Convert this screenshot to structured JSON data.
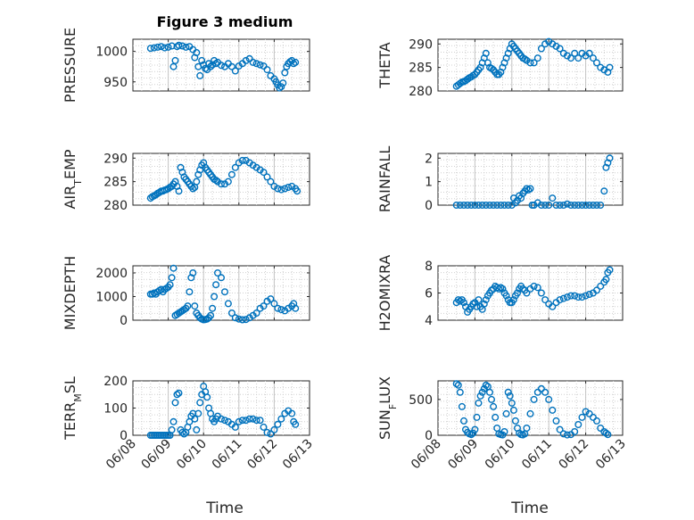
{
  "figure": {
    "title": "Figure 3 medium",
    "xlabel": "Time",
    "marker_color": "#0072BD",
    "x_ticks": [
      "06/08",
      "06/09",
      "06/10",
      "06/11",
      "06/12",
      "06/13"
    ]
  },
  "chart_data": [
    {
      "type": "scatter",
      "ylabel": "PRESSURE",
      "title": "Figure 3 medium",
      "ylim": [
        935,
        1020
      ],
      "yticks": [
        950,
        1000
      ],
      "xlim": [
        0,
        5
      ],
      "grid": true,
      "x": [
        0.5,
        0.6,
        0.7,
        0.8,
        0.9,
        1.0,
        1.1,
        1.15,
        1.2,
        1.25,
        1.3,
        1.4,
        1.5,
        1.6,
        1.7,
        1.75,
        1.8,
        1.85,
        1.9,
        1.95,
        2.0,
        2.05,
        2.1,
        2.15,
        2.2,
        2.25,
        2.3,
        2.35,
        2.4,
        2.5,
        2.6,
        2.7,
        2.8,
        2.9,
        3.0,
        3.1,
        3.2,
        3.3,
        3.4,
        3.5,
        3.6,
        3.7,
        3.8,
        3.9,
        4.0,
        4.05,
        4.1,
        4.15,
        4.2,
        4.25,
        4.3,
        4.35,
        4.4,
        4.45,
        4.5,
        4.55,
        4.6
      ],
      "y": [
        1005,
        1006,
        1007,
        1008,
        1006,
        1007,
        1009,
        975,
        985,
        1008,
        1010,
        1009,
        1007,
        1008,
        1003,
        990,
        998,
        975,
        960,
        985,
        978,
        972,
        970,
        980,
        975,
        978,
        985,
        980,
        982,
        977,
        975,
        980,
        975,
        968,
        976,
        980,
        985,
        988,
        982,
        980,
        978,
        976,
        970,
        960,
        955,
        950,
        945,
        940,
        942,
        948,
        965,
        975,
        980,
        983,
        985,
        980,
        982
      ],
      "series": [
        {
          "values": []
        }
      ]
    },
    {
      "type": "scatter",
      "ylabel": "THETA",
      "ylim": [
        280,
        291
      ],
      "yticks": [
        280,
        285,
        290
      ],
      "xlim": [
        0,
        5
      ],
      "grid": true,
      "x": [
        0.5,
        0.55,
        0.6,
        0.65,
        0.7,
        0.75,
        0.8,
        0.85,
        0.9,
        0.95,
        1.0,
        1.05,
        1.1,
        1.15,
        1.2,
        1.25,
        1.3,
        1.35,
        1.4,
        1.45,
        1.5,
        1.55,
        1.6,
        1.65,
        1.7,
        1.75,
        1.8,
        1.85,
        1.9,
        1.95,
        2.0,
        2.05,
        2.1,
        2.15,
        2.2,
        2.25,
        2.3,
        2.35,
        2.4,
        2.5,
        2.6,
        2.7,
        2.8,
        2.9,
        3.0,
        3.1,
        3.2,
        3.3,
        3.4,
        3.5,
        3.6,
        3.7,
        3.8,
        3.9,
        4.0,
        4.1,
        4.2,
        4.3,
        4.4,
        4.5,
        4.6,
        4.65
      ],
      "y": [
        281,
        281.3,
        281.6,
        281.9,
        282,
        282.2,
        282.5,
        282.8,
        283,
        283.3,
        283.5,
        284,
        284.5,
        285,
        286,
        287,
        288,
        286,
        285,
        284.8,
        284.5,
        284,
        283.5,
        283.5,
        284,
        285,
        286,
        287,
        288,
        289,
        290,
        289.5,
        289,
        288.5,
        288,
        287.5,
        287,
        286.8,
        286.5,
        286,
        286,
        287,
        289,
        290,
        290.5,
        290,
        289.5,
        289,
        288,
        287.5,
        287,
        288,
        287,
        288,
        287.5,
        288,
        287,
        286,
        285,
        284.5,
        284,
        285
      ],
      "series": [
        {
          "values": []
        }
      ]
    },
    {
      "type": "scatter",
      "ylabel": "AIR_TEMP",
      "ylim": [
        280,
        291
      ],
      "yticks": [
        280,
        285,
        290
      ],
      "xlim": [
        0,
        5
      ],
      "grid": true,
      "x": [
        0.5,
        0.55,
        0.6,
        0.65,
        0.7,
        0.75,
        0.8,
        0.85,
        0.9,
        0.95,
        1.0,
        1.05,
        1.1,
        1.15,
        1.2,
        1.25,
        1.3,
        1.35,
        1.4,
        1.45,
        1.5,
        1.55,
        1.6,
        1.65,
        1.7,
        1.75,
        1.8,
        1.85,
        1.9,
        1.95,
        2.0,
        2.05,
        2.1,
        2.15,
        2.2,
        2.25,
        2.3,
        2.35,
        2.4,
        2.5,
        2.6,
        2.7,
        2.8,
        2.9,
        3.0,
        3.1,
        3.2,
        3.3,
        3.4,
        3.5,
        3.6,
        3.7,
        3.8,
        3.9,
        4.0,
        4.1,
        4.2,
        4.3,
        4.4,
        4.5,
        4.6,
        4.65
      ],
      "y": [
        281.5,
        281.8,
        282,
        282.2,
        282.5,
        282.7,
        283,
        283,
        283.2,
        283.3,
        283.5,
        283.8,
        284,
        284.5,
        285,
        284,
        283,
        288,
        287,
        286,
        285.5,
        285,
        284.5,
        284,
        283.5,
        283.8,
        285,
        286.5,
        287.5,
        288.5,
        289,
        288,
        287.5,
        287,
        286.5,
        286,
        285.5,
        285.3,
        285,
        284.5,
        284.5,
        285,
        286.5,
        288,
        289,
        289.5,
        289.5,
        289,
        288.5,
        288,
        287.5,
        287,
        286,
        285,
        284,
        283.5,
        283.3,
        283.5,
        283.8,
        284,
        283.5,
        283
      ],
      "series": [
        {
          "values": []
        }
      ]
    },
    {
      "type": "scatter",
      "ylabel": "RAINFALL",
      "ylim": [
        0,
        2.2
      ],
      "yticks": [
        0,
        1,
        2
      ],
      "xlim": [
        0,
        5
      ],
      "grid": true,
      "x": [
        0.5,
        0.6,
        0.7,
        0.8,
        0.9,
        1.0,
        1.1,
        1.2,
        1.3,
        1.4,
        1.5,
        1.6,
        1.7,
        1.8,
        1.9,
        2.0,
        2.05,
        2.1,
        2.15,
        2.2,
        2.25,
        2.3,
        2.35,
        2.4,
        2.45,
        2.5,
        2.55,
        2.6,
        2.7,
        2.8,
        2.9,
        3.0,
        3.1,
        3.2,
        3.3,
        3.4,
        3.5,
        3.6,
        3.7,
        3.8,
        3.9,
        4.0,
        4.1,
        4.2,
        4.3,
        4.4,
        4.5,
        4.55,
        4.6,
        4.65
      ],
      "y": [
        0,
        0,
        0,
        0,
        0,
        0,
        0,
        0,
        0,
        0,
        0,
        0,
        0,
        0,
        0,
        0,
        0.3,
        0.1,
        0.2,
        0.4,
        0.3,
        0.5,
        0.6,
        0.7,
        0.65,
        0.7,
        0,
        0,
        0.1,
        0,
        0,
        0,
        0.3,
        0,
        0,
        0,
        0.05,
        0,
        0,
        0,
        0,
        0,
        0,
        0,
        0,
        0,
        0.6,
        1.6,
        1.8,
        2.0
      ],
      "series": [
        {
          "values": []
        }
      ]
    },
    {
      "type": "scatter",
      "ylabel": "MIXDEPTH",
      "ylim": [
        0,
        2300
      ],
      "yticks": [
        0,
        1000,
        2000
      ],
      "xlim": [
        0,
        5
      ],
      "grid": true,
      "x": [
        0.5,
        0.55,
        0.6,
        0.65,
        0.7,
        0.75,
        0.8,
        0.85,
        0.9,
        0.95,
        1.0,
        1.05,
        1.1,
        1.15,
        1.2,
        1.25,
        1.3,
        1.35,
        1.4,
        1.45,
        1.5,
        1.55,
        1.6,
        1.65,
        1.7,
        1.75,
        1.8,
        1.85,
        1.9,
        1.95,
        2.0,
        2.05,
        2.1,
        2.15,
        2.2,
        2.25,
        2.3,
        2.35,
        2.4,
        2.5,
        2.6,
        2.7,
        2.8,
        2.9,
        3.0,
        3.1,
        3.2,
        3.3,
        3.4,
        3.5,
        3.6,
        3.7,
        3.8,
        3.9,
        4.0,
        4.1,
        4.2,
        4.3,
        4.4,
        4.5,
        4.55,
        4.6
      ],
      "y": [
        1100,
        1100,
        1150,
        1100,
        1200,
        1250,
        1300,
        1200,
        1300,
        1350,
        1400,
        1500,
        1800,
        2200,
        200,
        250,
        300,
        350,
        400,
        450,
        500,
        600,
        1200,
        1800,
        2000,
        600,
        300,
        200,
        100,
        50,
        20,
        30,
        50,
        100,
        200,
        500,
        1000,
        1500,
        2000,
        1800,
        1200,
        700,
        300,
        100,
        50,
        20,
        30,
        100,
        200,
        300,
        500,
        600,
        800,
        900,
        700,
        500,
        450,
        400,
        500,
        600,
        700,
        500
      ],
      "series": [
        {
          "values": []
        }
      ]
    },
    {
      "type": "scatter",
      "ylabel": "H2OMIXRA",
      "ylim": [
        4,
        8
      ],
      "yticks": [
        4,
        6,
        8
      ],
      "xlim": [
        0,
        5
      ],
      "grid": true,
      "x": [
        0.5,
        0.55,
        0.6,
        0.65,
        0.7,
        0.75,
        0.8,
        0.85,
        0.9,
        0.95,
        1.0,
        1.05,
        1.1,
        1.15,
        1.2,
        1.25,
        1.3,
        1.35,
        1.4,
        1.45,
        1.5,
        1.55,
        1.6,
        1.65,
        1.7,
        1.75,
        1.8,
        1.85,
        1.9,
        1.95,
        2.0,
        2.05,
        2.1,
        2.15,
        2.2,
        2.25,
        2.3,
        2.35,
        2.4,
        2.5,
        2.6,
        2.7,
        2.8,
        2.9,
        3.0,
        3.1,
        3.2,
        3.3,
        3.4,
        3.5,
        3.6,
        3.7,
        3.8,
        3.9,
        4.0,
        4.1,
        4.2,
        4.3,
        4.4,
        4.5,
        4.55,
        4.6,
        4.65
      ],
      "y": [
        5.3,
        5.5,
        5.4,
        5.5,
        5.3,
        5.0,
        4.6,
        4.8,
        5.0,
        5.2,
        5.3,
        5.0,
        5.5,
        5.0,
        4.8,
        5.2,
        5.5,
        5.8,
        6.0,
        6.2,
        6.3,
        6.5,
        6.4,
        6.3,
        6.4,
        6.3,
        6.0,
        5.8,
        5.5,
        5.3,
        5.3,
        5.5,
        5.8,
        6.0,
        6.3,
        6.5,
        6.3,
        6.2,
        6.0,
        6.3,
        6.5,
        6.4,
        6.0,
        5.5,
        5.2,
        5.0,
        5.3,
        5.5,
        5.6,
        5.7,
        5.8,
        5.8,
        5.7,
        5.7,
        5.8,
        5.9,
        6.0,
        6.2,
        6.5,
        6.8,
        7.0,
        7.5,
        7.7
      ],
      "series": [
        {
          "values": []
        }
      ]
    },
    {
      "type": "scatter",
      "ylabel": "TERR_MSL",
      "ylim": [
        0,
        200
      ],
      "yticks": [
        0,
        100,
        200
      ],
      "xlim": [
        0,
        5
      ],
      "grid": true,
      "x": [
        0.5,
        0.55,
        0.6,
        0.65,
        0.7,
        0.75,
        0.8,
        0.85,
        0.9,
        0.95,
        1.0,
        1.05,
        1.1,
        1.15,
        1.2,
        1.25,
        1.3,
        1.35,
        1.4,
        1.45,
        1.5,
        1.55,
        1.6,
        1.65,
        1.7,
        1.75,
        1.8,
        1.85,
        1.9,
        1.95,
        2.0,
        2.05,
        2.1,
        2.15,
        2.2,
        2.25,
        2.3,
        2.35,
        2.4,
        2.5,
        2.6,
        2.7,
        2.8,
        2.9,
        3.0,
        3.1,
        3.2,
        3.3,
        3.4,
        3.5,
        3.6,
        3.7,
        3.8,
        3.9,
        4.0,
        4.1,
        4.2,
        4.3,
        4.4,
        4.5,
        4.55,
        4.6
      ],
      "y": [
        0,
        0,
        0,
        0,
        0,
        0,
        0,
        0,
        0,
        0,
        0,
        0,
        20,
        50,
        120,
        150,
        155,
        20,
        10,
        5,
        10,
        30,
        50,
        70,
        80,
        60,
        20,
        80,
        120,
        150,
        180,
        160,
        140,
        100,
        80,
        60,
        50,
        60,
        70,
        60,
        55,
        50,
        40,
        30,
        50,
        55,
        55,
        60,
        60,
        55,
        55,
        30,
        10,
        5,
        20,
        40,
        60,
        80,
        90,
        80,
        50,
        40
      ],
      "series": [
        {
          "values": []
        }
      ]
    },
    {
      "type": "scatter",
      "ylabel": "SUN_FLUX",
      "ylim": [
        0,
        760
      ],
      "yticks": [
        0,
        500
      ],
      "xlim": [
        0,
        5
      ],
      "grid": true,
      "x": [
        0.5,
        0.55,
        0.6,
        0.65,
        0.7,
        0.75,
        0.8,
        0.85,
        0.9,
        0.95,
        1.0,
        1.05,
        1.1,
        1.15,
        1.2,
        1.25,
        1.3,
        1.35,
        1.4,
        1.45,
        1.5,
        1.55,
        1.6,
        1.65,
        1.7,
        1.75,
        1.8,
        1.85,
        1.9,
        1.95,
        2.0,
        2.05,
        2.1,
        2.15,
        2.2,
        2.25,
        2.3,
        2.35,
        2.4,
        2.5,
        2.6,
        2.7,
        2.8,
        2.9,
        3.0,
        3.1,
        3.2,
        3.3,
        3.4,
        3.5,
        3.6,
        3.7,
        3.8,
        3.9,
        4.0,
        4.1,
        4.2,
        4.3,
        4.4,
        4.5,
        4.55,
        4.6
      ],
      "y": [
        720,
        700,
        600,
        400,
        200,
        80,
        40,
        20,
        10,
        30,
        80,
        250,
        450,
        550,
        600,
        650,
        700,
        680,
        600,
        500,
        400,
        250,
        100,
        20,
        10,
        5,
        50,
        300,
        600,
        550,
        450,
        350,
        200,
        100,
        30,
        10,
        5,
        20,
        100,
        300,
        500,
        600,
        650,
        600,
        500,
        350,
        200,
        80,
        20,
        5,
        10,
        50,
        150,
        250,
        330,
        300,
        250,
        200,
        100,
        50,
        30,
        10
      ],
      "series": [
        {
          "values": []
        }
      ]
    }
  ]
}
